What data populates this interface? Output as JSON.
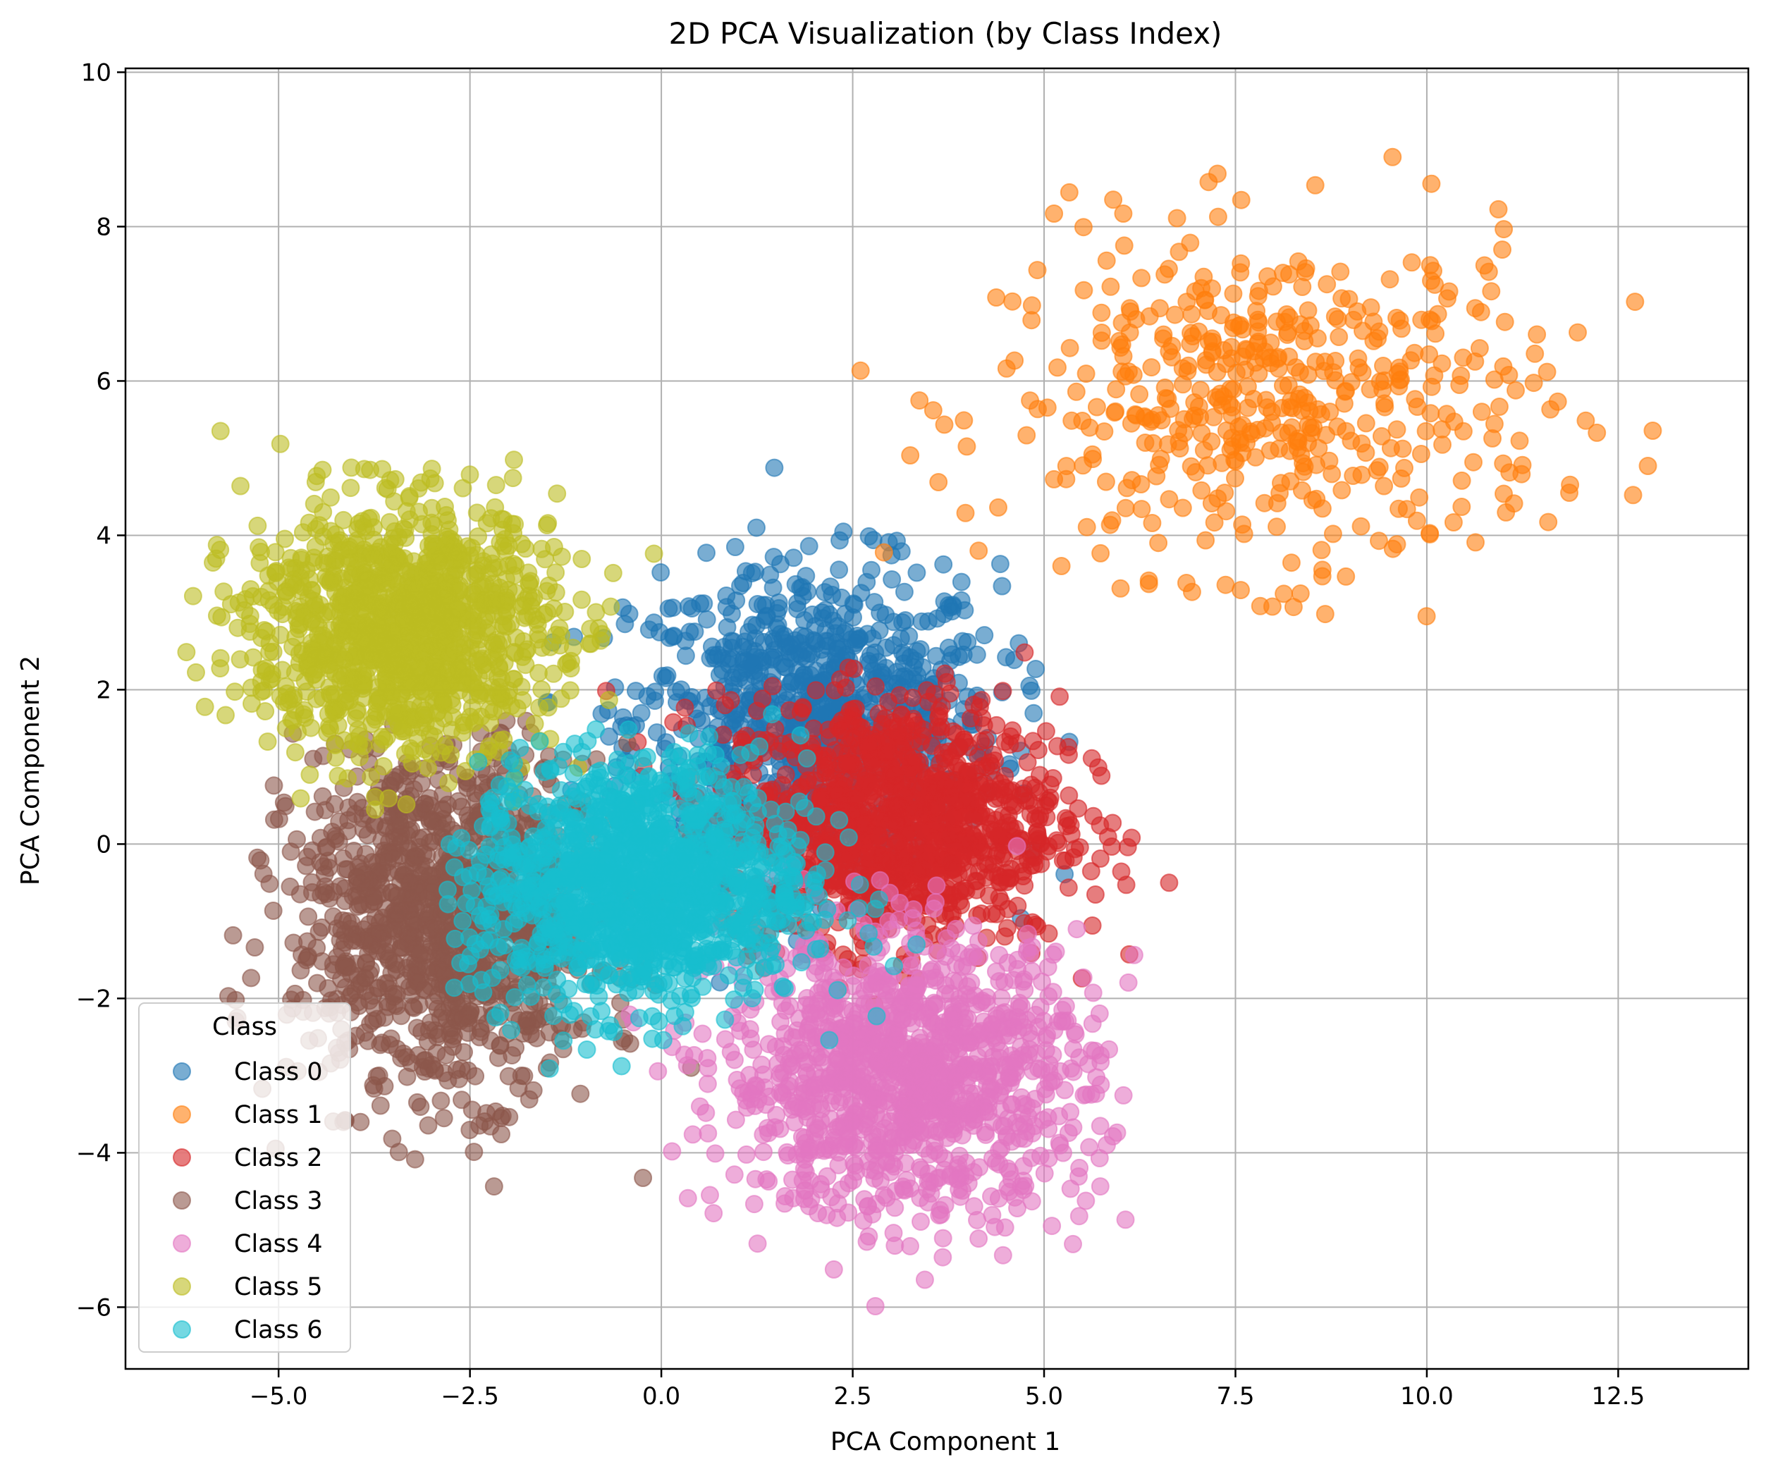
{
  "chart_data": {
    "type": "scatter",
    "title": "2D PCA Visualization (by Class Index)",
    "xlabel": "PCA Component 1",
    "ylabel": "PCA Component 2",
    "xlim": [
      -7.0,
      14.2
    ],
    "ylim": [
      -6.8,
      10.05
    ],
    "xticks": [
      -5.0,
      -2.5,
      0.0,
      2.5,
      5.0,
      7.5,
      10.0,
      12.5
    ],
    "xtick_labels": [
      "−5.0",
      "−2.5",
      "0.0",
      "2.5",
      "5.0",
      "7.5",
      "10.0",
      "12.5"
    ],
    "yticks": [
      -6,
      -4,
      -2,
      0,
      2,
      4,
      6,
      8,
      10
    ],
    "ytick_labels": [
      "−6",
      "−4",
      "−2",
      "0",
      "2",
      "4",
      "6",
      "8",
      "10"
    ],
    "grid": true,
    "legend": {
      "title": "Class",
      "placement": "lower-left"
    },
    "series": [
      {
        "name": "Class 0",
        "color": "#1f77b4",
        "center": [
          2.0,
          1.6
        ],
        "spread": [
          1.2,
          1.0
        ],
        "extent_x": [
          -1.9,
          5.6
        ],
        "extent_y": [
          -2.3,
          4.9
        ]
      },
      {
        "name": "Class 1",
        "color": "#ff7f0e",
        "center": [
          8.0,
          5.7
        ],
        "spread": [
          1.8,
          1.1
        ],
        "extent_x": [
          2.4,
          13.3
        ],
        "extent_y": [
          2.9,
          9.3
        ]
      },
      {
        "name": "Class 2",
        "color": "#d62728",
        "center": [
          3.0,
          0.3
        ],
        "spread": [
          1.1,
          0.8
        ],
        "extent_x": [
          -1.0,
          7.2
        ],
        "extent_y": [
          -2.1,
          2.8
        ]
      },
      {
        "name": "Class 3",
        "color": "#8c564b",
        "center": [
          -2.8,
          -1.0
        ],
        "spread": [
          1.0,
          1.1
        ],
        "extent_x": [
          -5.7,
          0.6
        ],
        "extent_y": [
          -5.5,
          1.6
        ]
      },
      {
        "name": "Class 4",
        "color": "#e377c2",
        "center": [
          3.2,
          -3.0
        ],
        "spread": [
          1.2,
          0.9
        ],
        "extent_x": [
          -0.8,
          6.4
        ],
        "extent_y": [
          -6.0,
          0.4
        ]
      },
      {
        "name": "Class 5",
        "color": "#bcbd22",
        "center": [
          -3.4,
          2.8
        ],
        "spread": [
          1.0,
          0.8
        ],
        "extent_x": [
          -6.3,
          0.3
        ],
        "extent_y": [
          -0.1,
          5.4
        ]
      },
      {
        "name": "Class 6",
        "color": "#17becf",
        "center": [
          -0.3,
          -0.5
        ],
        "spread": [
          1.1,
          0.8
        ],
        "extent_x": [
          -2.8,
          3.6
        ],
        "extent_y": [
          -3.0,
          2.2
        ]
      }
    ]
  }
}
